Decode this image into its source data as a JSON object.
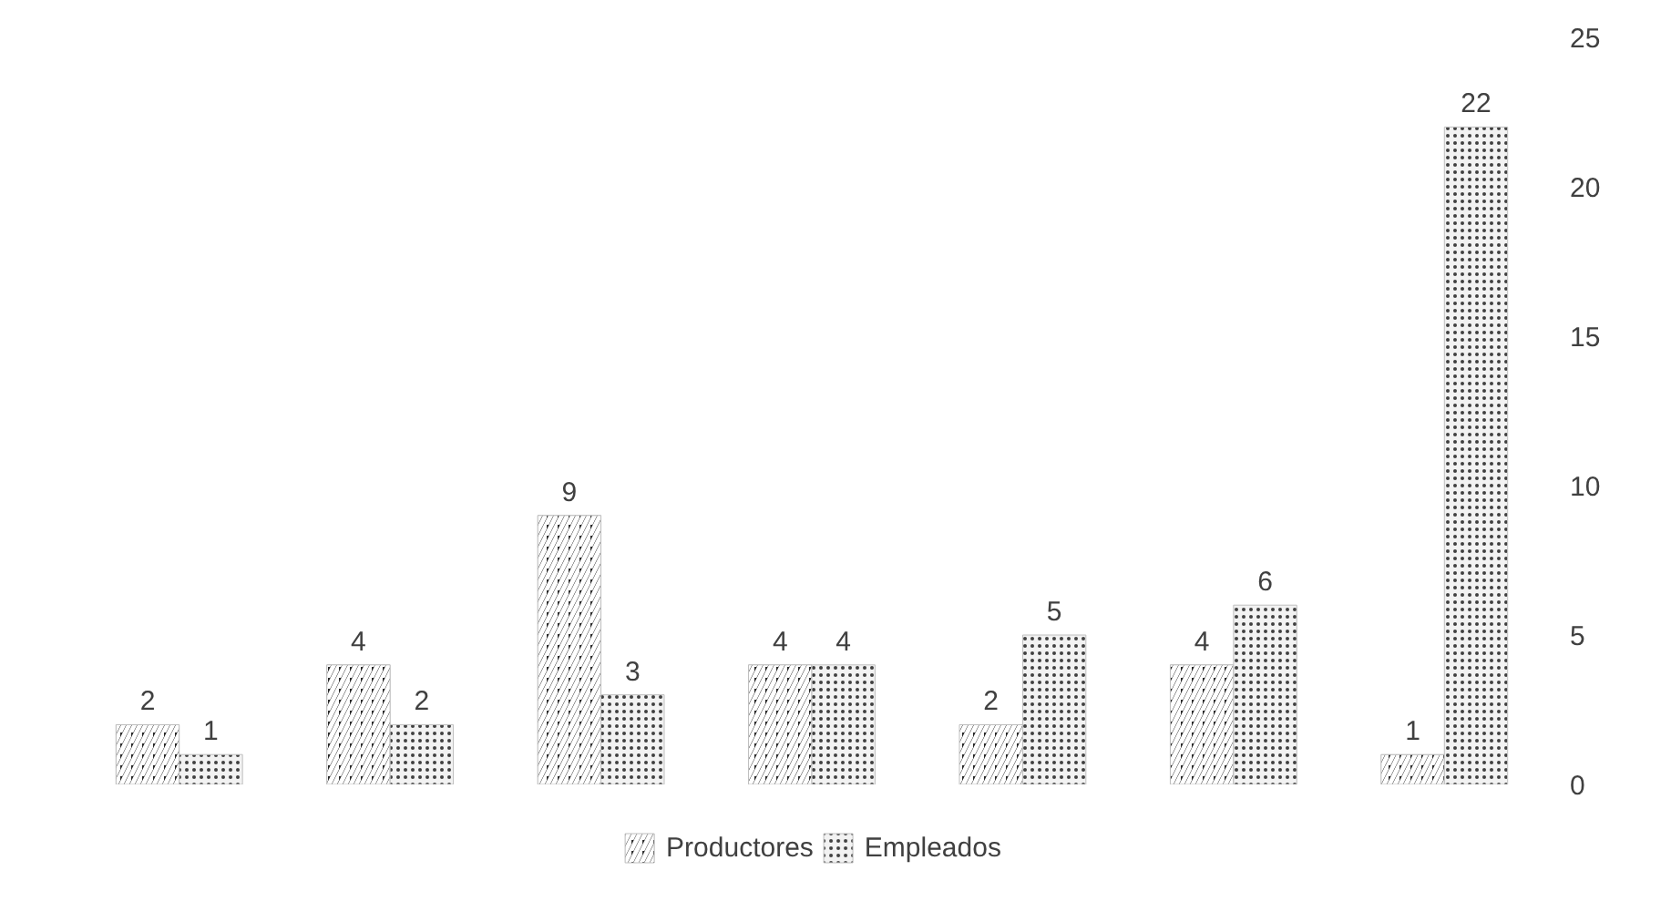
{
  "chart_data": {
    "type": "bar",
    "categories": [
      null,
      null,
      null,
      null,
      null,
      null,
      null
    ],
    "series": [
      {
        "name": "Productores",
        "color": "#262626",
        "values": [
          2,
          4,
          9,
          4,
          2,
          4,
          1
        ]
      },
      {
        "name": "Empleados",
        "color": "#f2f2f2",
        "values": [
          1,
          2,
          3,
          4,
          5,
          6,
          22
        ]
      }
    ],
    "ylim": [
      0,
      25
    ],
    "yticks": [
      0,
      5,
      10,
      15,
      20,
      25
    ],
    "grid": false,
    "legend": "bottom",
    "data_labels": true
  }
}
